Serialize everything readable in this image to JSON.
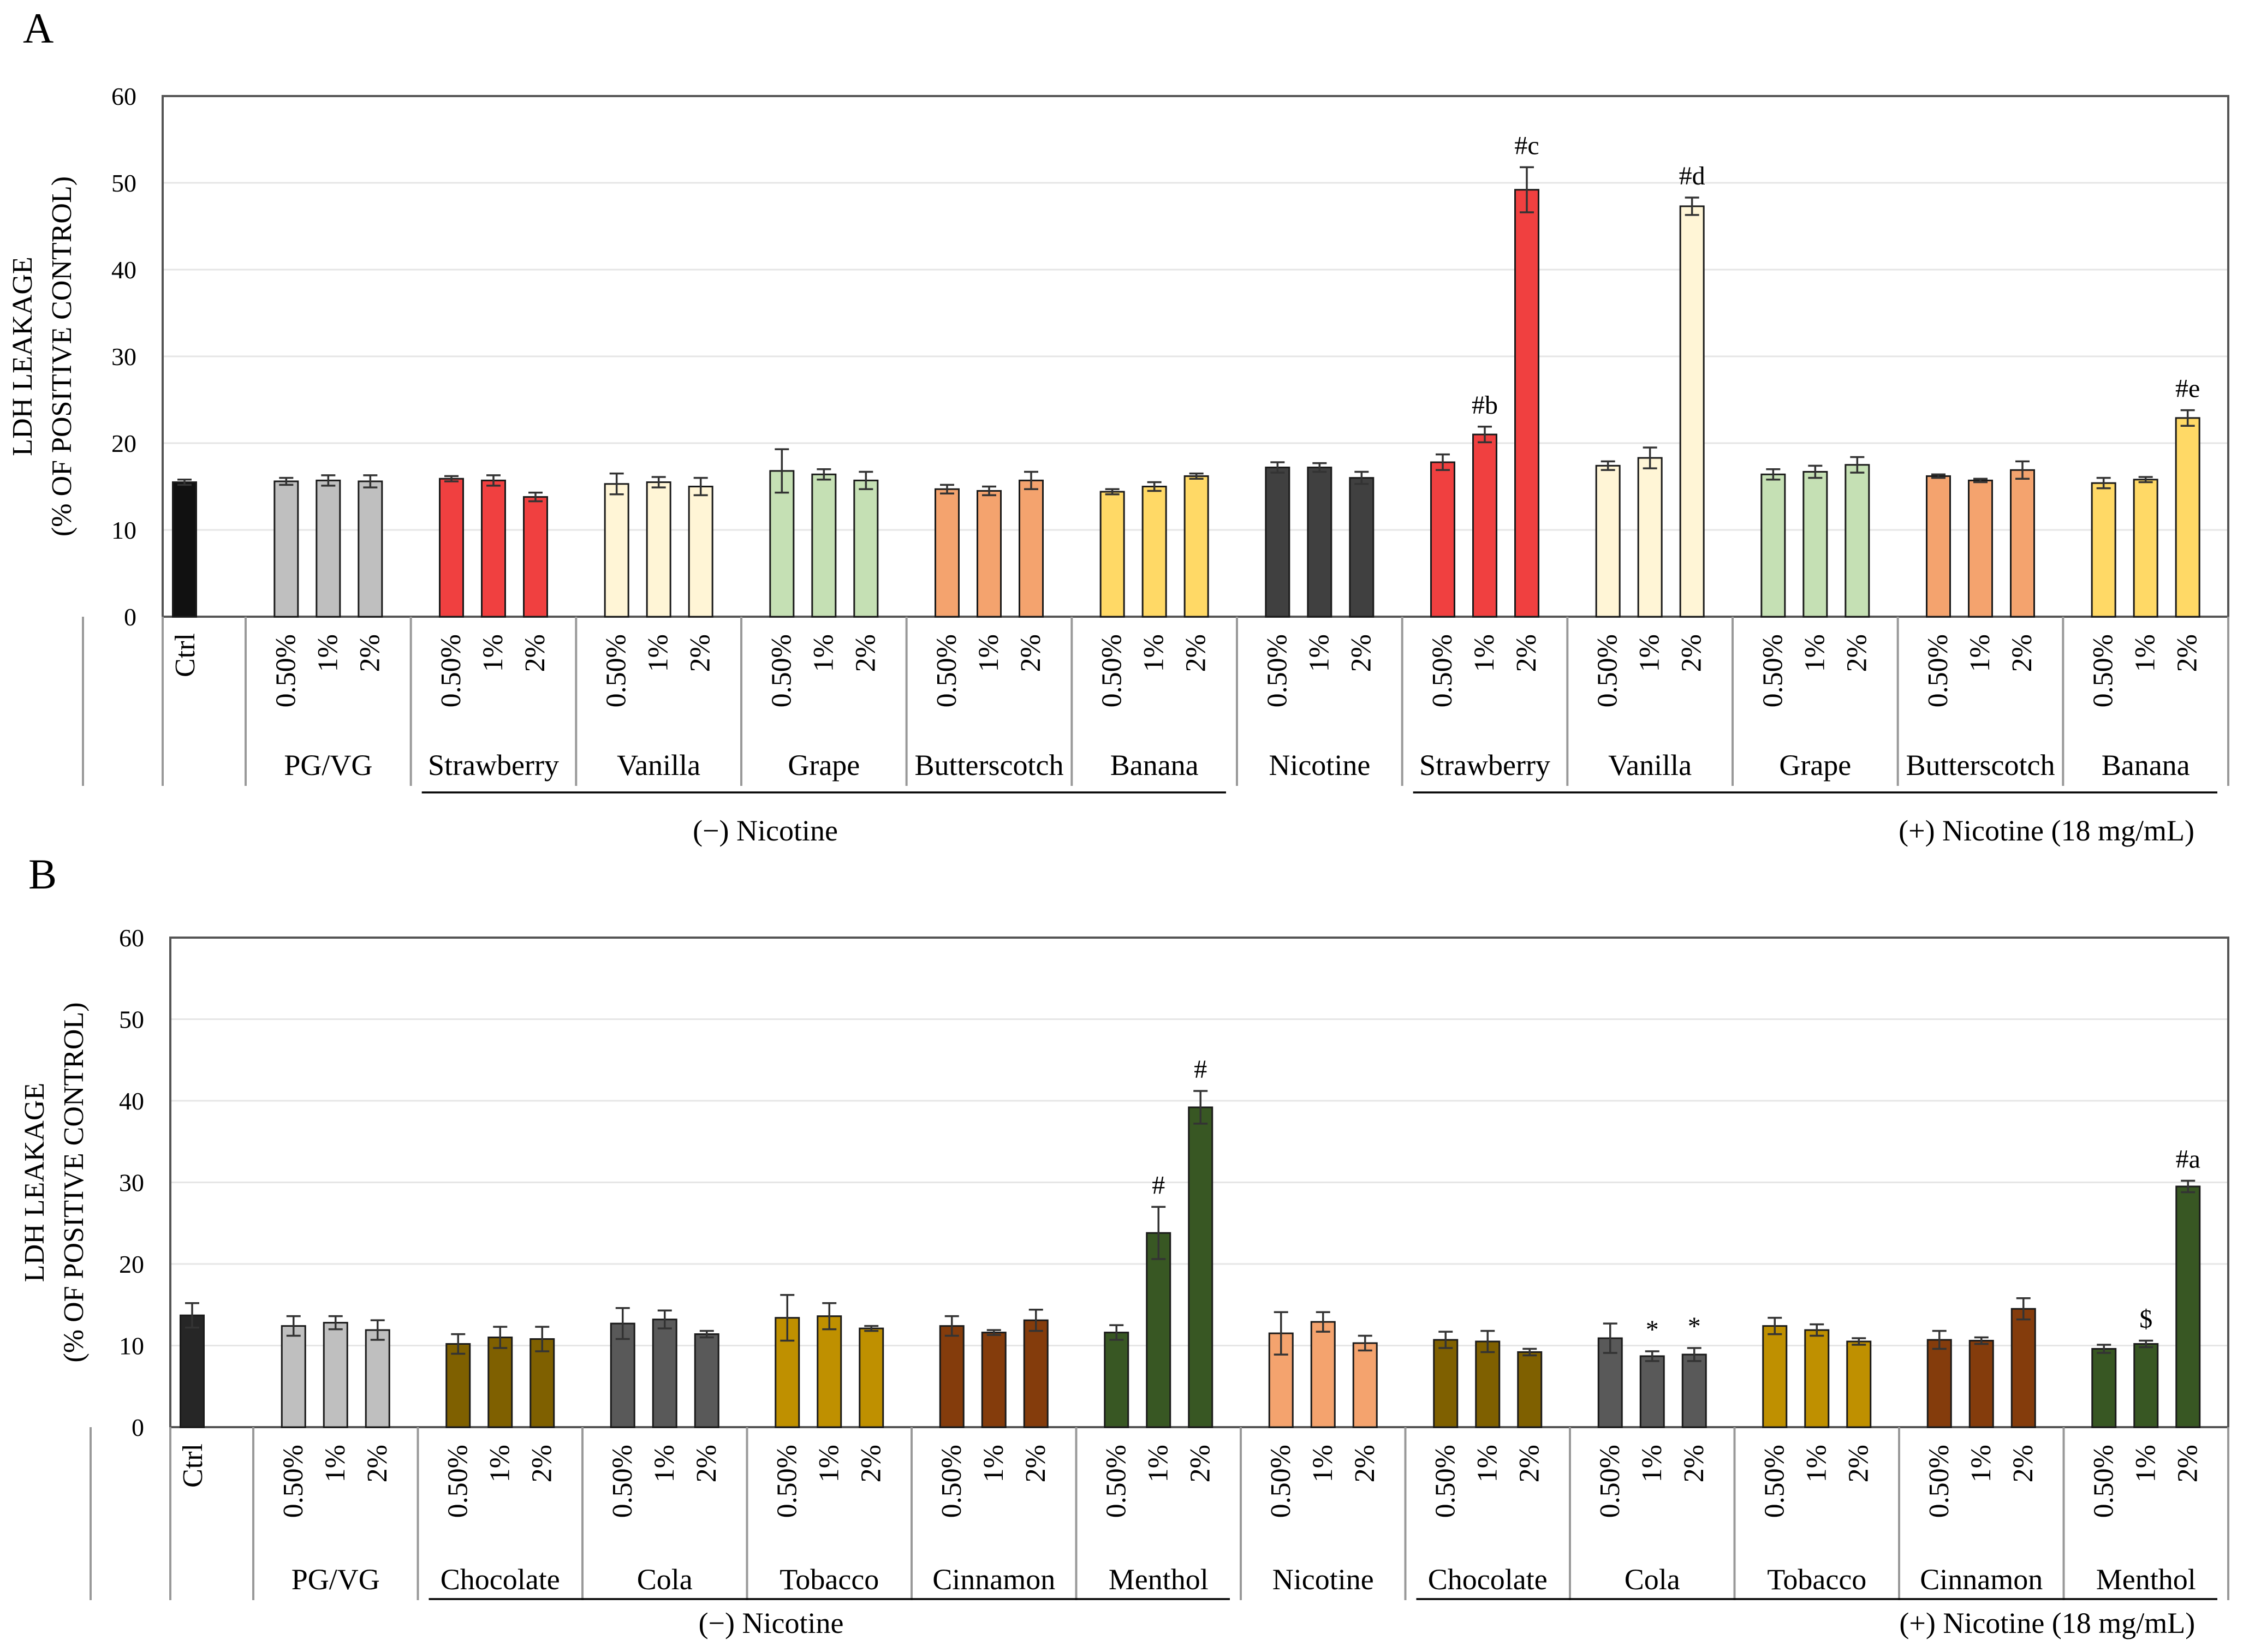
{
  "chart_data": [
    {
      "type": "bar",
      "panel": "A",
      "ylabel": "LDH LEAKAGE",
      "ylabel2": "(% OF POSITIVE CONTROL)",
      "ylim": [
        0,
        60
      ],
      "yticks": [
        0,
        10,
        20,
        30,
        40,
        50,
        60
      ],
      "grid": true,
      "ctrl": {
        "label": "Ctrl",
        "value": 15.5,
        "error": 0.3,
        "color": "#111111"
      },
      "concentrations": [
        "0.50%",
        "1%",
        "2%"
      ],
      "groups": [
        {
          "name": "PG/VG",
          "set": "none",
          "color": "#bfbfbf",
          "values": [
            15.6,
            15.7,
            15.6
          ],
          "errors": [
            0.4,
            0.6,
            0.7
          ],
          "annotations": [
            "",
            "",
            ""
          ]
        },
        {
          "name": "Strawberry",
          "set": "minus",
          "color": "#f04040",
          "values": [
            15.9,
            15.7,
            13.8
          ],
          "errors": [
            0.3,
            0.6,
            0.5
          ],
          "annotations": [
            "",
            "",
            ""
          ]
        },
        {
          "name": "Vanilla",
          "set": "minus",
          "color": "#fff5d6",
          "values": [
            15.3,
            15.5,
            15.0
          ],
          "errors": [
            1.2,
            0.6,
            1.0
          ],
          "annotations": [
            "",
            "",
            ""
          ]
        },
        {
          "name": "Grape",
          "set": "minus",
          "color": "#c5e0b4",
          "values": [
            16.8,
            16.4,
            15.7
          ],
          "errors": [
            2.5,
            0.6,
            1.0
          ],
          "annotations": [
            "",
            "",
            ""
          ]
        },
        {
          "name": "Butterscotch",
          "set": "minus",
          "color": "#f4a36e",
          "values": [
            14.7,
            14.5,
            15.7
          ],
          "errors": [
            0.5,
            0.5,
            1.0
          ],
          "annotations": [
            "",
            "",
            ""
          ]
        },
        {
          "name": "Banana",
          "set": "minus",
          "color": "#ffd966",
          "values": [
            14.4,
            15.0,
            16.2
          ],
          "errors": [
            0.3,
            0.5,
            0.3
          ],
          "annotations": [
            "",
            "",
            ""
          ]
        },
        {
          "name": "Nicotine",
          "set": "none",
          "color": "#404040",
          "values": [
            17.2,
            17.2,
            16.0
          ],
          "errors": [
            0.6,
            0.5,
            0.7
          ],
          "annotations": [
            "",
            "",
            ""
          ]
        },
        {
          "name": "Strawberry",
          "set": "plus",
          "color": "#f04040",
          "values": [
            17.8,
            21.0,
            49.2
          ],
          "errors": [
            0.9,
            0.9,
            2.6
          ],
          "annotations": [
            "",
            "#b",
            "#c"
          ]
        },
        {
          "name": "Vanilla",
          "set": "plus",
          "color": "#fff5d6",
          "values": [
            17.4,
            18.3,
            47.3
          ],
          "errors": [
            0.5,
            1.2,
            1.0
          ],
          "annotations": [
            "",
            "",
            "#d"
          ]
        },
        {
          "name": "Grape",
          "set": "plus",
          "color": "#c5e0b4",
          "values": [
            16.4,
            16.7,
            17.5
          ],
          "errors": [
            0.6,
            0.7,
            0.9
          ],
          "annotations": [
            "",
            "",
            ""
          ]
        },
        {
          "name": "Butterscotch",
          "set": "plus",
          "color": "#f4a36e",
          "values": [
            16.2,
            15.7,
            16.9
          ],
          "errors": [
            0.2,
            0.2,
            1.0
          ],
          "annotations": [
            "",
            "",
            ""
          ]
        },
        {
          "name": "Banana",
          "set": "plus",
          "color": "#ffd966",
          "values": [
            15.4,
            15.8,
            22.9
          ],
          "errors": [
            0.6,
            0.3,
            0.9
          ],
          "annotations": [
            "",
            "",
            "#e"
          ]
        }
      ],
      "minus_label": "(−) Nicotine",
      "plus_label": "(+) Nicotine  (18 mg/mL)"
    },
    {
      "type": "bar",
      "panel": "B",
      "ylabel": "LDH LEAKAGE",
      "ylabel2": "(% OF POSITIVE CONTROL)",
      "ylim": [
        0,
        60
      ],
      "yticks": [
        0,
        10,
        20,
        30,
        40,
        50,
        60
      ],
      "grid": true,
      "ctrl": {
        "label": "Ctrl",
        "value": 13.7,
        "error": 1.5,
        "color": "#262626"
      },
      "concentrations": [
        "0.50%",
        "1%",
        "2%"
      ],
      "groups": [
        {
          "name": "PG/VG",
          "set": "none",
          "color": "#bfbfbf",
          "values": [
            12.4,
            12.8,
            11.9
          ],
          "errors": [
            1.2,
            0.8,
            1.2
          ],
          "annotations": [
            "",
            "",
            ""
          ]
        },
        {
          "name": "Chocolate",
          "set": "minus",
          "color": "#7f6000",
          "values": [
            10.2,
            11.0,
            10.8
          ],
          "errors": [
            1.2,
            1.3,
            1.5
          ],
          "annotations": [
            "",
            "",
            ""
          ]
        },
        {
          "name": "Cola",
          "set": "minus",
          "color": "#595959",
          "values": [
            12.7,
            13.2,
            11.4
          ],
          "errors": [
            1.9,
            1.1,
            0.4
          ],
          "annotations": [
            "",
            "",
            ""
          ]
        },
        {
          "name": "Tobacco",
          "set": "minus",
          "color": "#bf9000",
          "values": [
            13.4,
            13.6,
            12.1
          ],
          "errors": [
            2.8,
            1.6,
            0.3
          ],
          "annotations": [
            "",
            "",
            ""
          ]
        },
        {
          "name": "Cinnamon",
          "set": "minus",
          "color": "#843c0c",
          "values": [
            12.4,
            11.6,
            13.1
          ],
          "errors": [
            1.2,
            0.3,
            1.3
          ],
          "annotations": [
            "",
            "",
            ""
          ]
        },
        {
          "name": "Menthol",
          "set": "minus",
          "color": "#385723",
          "values": [
            11.6,
            23.8,
            39.2
          ],
          "errors": [
            0.9,
            3.2,
            2.0
          ],
          "annotations": [
            "",
            "#",
            "#"
          ]
        },
        {
          "name": "Nicotine",
          "set": "none",
          "color": "#f4a36e",
          "values": [
            11.5,
            12.9,
            10.3
          ],
          "errors": [
            2.6,
            1.2,
            0.9
          ],
          "annotations": [
            "",
            "",
            ""
          ]
        },
        {
          "name": "Chocolate",
          "set": "plus",
          "color": "#7f6000",
          "values": [
            10.7,
            10.5,
            9.2
          ],
          "errors": [
            1.0,
            1.3,
            0.4
          ],
          "annotations": [
            "",
            "",
            ""
          ]
        },
        {
          "name": "Cola",
          "set": "plus",
          "color": "#595959",
          "values": [
            10.9,
            8.7,
            8.9
          ],
          "errors": [
            1.8,
            0.6,
            0.8
          ],
          "annotations": [
            "",
            "*",
            "*"
          ]
        },
        {
          "name": "Tobacco",
          "set": "plus",
          "color": "#bf9000",
          "values": [
            12.4,
            11.9,
            10.5
          ],
          "errors": [
            1.0,
            0.7,
            0.4
          ],
          "annotations": [
            "",
            "",
            ""
          ]
        },
        {
          "name": "Cinnamon",
          "set": "plus",
          "color": "#843c0c",
          "values": [
            10.7,
            10.6,
            14.5
          ],
          "errors": [
            1.1,
            0.4,
            1.3
          ],
          "annotations": [
            "",
            "",
            ""
          ]
        },
        {
          "name": "Menthol",
          "set": "plus",
          "color": "#385723",
          "values": [
            9.6,
            10.2,
            29.5
          ],
          "errors": [
            0.5,
            0.4,
            0.7
          ],
          "annotations": [
            "",
            "$",
            "#a"
          ]
        }
      ],
      "minus_label": "(−) Nicotine",
      "plus_label": "(+) Nicotine  (18 mg/mL)"
    }
  ]
}
